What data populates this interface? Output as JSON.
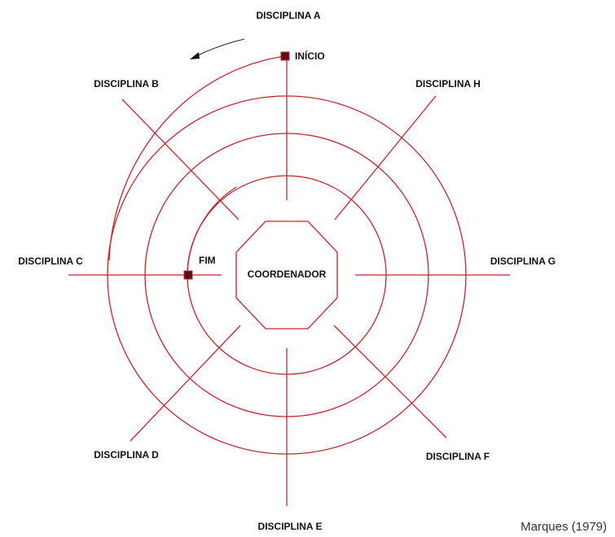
{
  "center": "COORDENADOR",
  "disciplines": [
    "DISCIPLINA A",
    "DISCIPLINA B",
    "DISCIPLINA C",
    "DISCIPLINA D",
    "DISCIPLINA E",
    "DISCIPLINA F",
    "DISCIPLINA G",
    "DISCIPLINA H"
  ],
  "start": "INÍCIO",
  "end": "FIM",
  "citation": "Marques (1979)"
}
